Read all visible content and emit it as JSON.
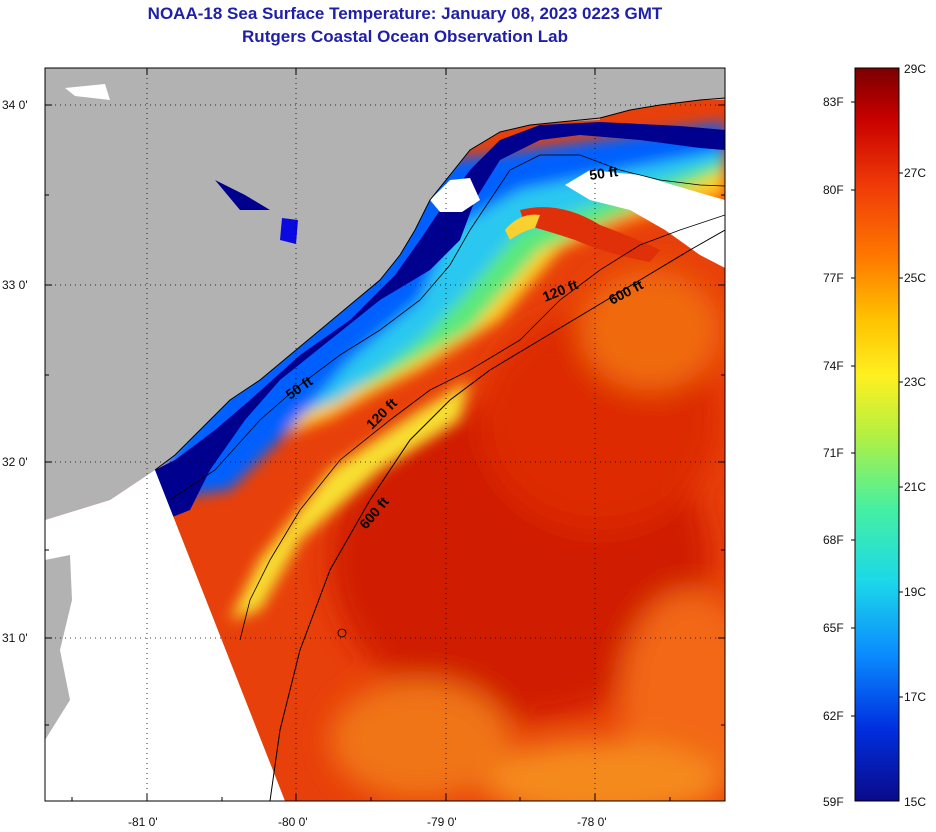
{
  "title": {
    "line1": "NOAA-18 Sea Surface Temperature:  January 08, 2023 0223 GMT",
    "line2": "Rutgers Coastal Ocean Observation Lab"
  },
  "map": {
    "lat_labels": [
      "34 0'",
      "33 0'",
      "32 0'",
      "31 0'"
    ],
    "lon_labels": [
      "-81 0'",
      "-80 0'",
      "-79 0'",
      "-78 0'"
    ],
    "isobath_labels": [
      "50 ft",
      "50 ft",
      "120 ft",
      "120 ft",
      "600 ft",
      "600 ft"
    ],
    "colors": {
      "land": "#b2b2b2",
      "no_data": "#ffffff",
      "cold": "#00008f",
      "warm": "#e83a00"
    }
  },
  "colorbar": {
    "fahrenheit": [
      "83F",
      "80F",
      "77F",
      "74F",
      "71F",
      "68F",
      "65F",
      "62F",
      "59F"
    ],
    "celsius": [
      "29C",
      "27C",
      "25C",
      "23C",
      "21C",
      "19C",
      "17C",
      "15C"
    ],
    "stops": [
      "#0a0a8a",
      "#0030e0",
      "#0a8cff",
      "#1cd8e8",
      "#46f0a0",
      "#b4f040",
      "#fff020",
      "#ffc000",
      "#ff7a00",
      "#f03a08",
      "#c80000",
      "#7a0000"
    ]
  }
}
